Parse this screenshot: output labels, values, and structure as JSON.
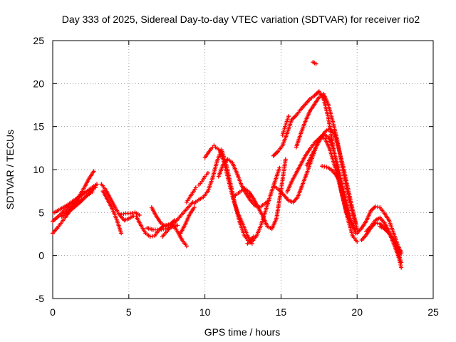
{
  "chart_data": {
    "type": "scatter",
    "title": "Day 333 of 2025, Sidereal Day-to-day VTEC variation (SDTVAR) for receiver rio2",
    "xlabel": "GPS time / hours",
    "ylabel": "SDTVAR / TECUs",
    "xlim": [
      0,
      25
    ],
    "ylim": [
      -5,
      25
    ],
    "xticks": [
      "0",
      "5",
      "10",
      "15",
      "20",
      "25"
    ],
    "yticks": [
      "-5",
      "0",
      "5",
      "10",
      "15",
      "20",
      "25"
    ],
    "grid": true,
    "marker": "+",
    "color": "#ff0000",
    "series": [
      {
        "name": "s1",
        "x": [
          0.0,
          0.3,
          0.6,
          0.9,
          1.2,
          1.5,
          1.8,
          2.1,
          2.4,
          2.7
        ],
        "y": [
          2.6,
          3.2,
          3.9,
          4.6,
          5.4,
          6.2,
          7.1,
          8.0,
          9.0,
          9.8
        ]
      },
      {
        "name": "s2",
        "x": [
          0.0,
          0.4,
          0.8,
          1.2,
          1.6,
          2.0,
          2.4,
          2.8
        ],
        "y": [
          4.0,
          4.6,
          5.3,
          6.0,
          6.6,
          7.2,
          7.6,
          7.9
        ]
      },
      {
        "name": "s3",
        "x": [
          0.1,
          0.5,
          0.9,
          1.3,
          1.7,
          2.1,
          2.5,
          2.8
        ],
        "y": [
          5.0,
          5.4,
          5.8,
          6.3,
          6.8,
          7.3,
          7.8,
          8.2
        ]
      },
      {
        "name": "s4",
        "x": [
          0.6,
          1.0,
          1.4,
          1.8,
          2.2,
          2.6
        ],
        "y": [
          4.5,
          5.2,
          5.8,
          6.4,
          6.9,
          7.4
        ]
      },
      {
        "name": "s5",
        "x": [
          1.0,
          1.4,
          1.8,
          2.2,
          2.6,
          2.9
        ],
        "y": [
          5.0,
          5.6,
          6.2,
          6.9,
          7.6,
          8.3
        ]
      },
      {
        "name": "s6",
        "x": [
          3.2,
          3.5,
          3.8,
          4.1,
          4.4,
          4.7,
          5.0,
          5.3
        ],
        "y": [
          8.3,
          7.6,
          6.6,
          5.6,
          4.7,
          4.1,
          4.3,
          4.6
        ]
      },
      {
        "name": "s7",
        "x": [
          3.3,
          3.6,
          3.9,
          4.2,
          4.5
        ],
        "y": [
          7.5,
          6.5,
          5.5,
          4.2,
          2.6
        ]
      },
      {
        "name": "s8",
        "x": [
          4.5,
          4.8,
          5.1,
          5.4,
          5.7
        ],
        "y": [
          4.8,
          4.9,
          4.9,
          5.0,
          4.7
        ]
      },
      {
        "name": "s9",
        "x": [
          5.5,
          5.8,
          6.1,
          6.4,
          6.7,
          7.0,
          7.3,
          7.6,
          7.9,
          8.2,
          8.5,
          8.8
        ],
        "y": [
          4.5,
          3.5,
          2.6,
          2.2,
          2.3,
          3.0,
          3.5,
          3.6,
          3.5,
          2.8,
          1.8,
          1.1
        ]
      },
      {
        "name": "s10",
        "x": [
          6.2,
          6.6,
          7.0,
          7.4,
          7.8,
          8.2
        ],
        "y": [
          3.2,
          3.0,
          3.0,
          3.1,
          3.3,
          3.5
        ]
      },
      {
        "name": "s11",
        "x": [
          6.5,
          6.8,
          7.1,
          7.4,
          7.7,
          8.0
        ],
        "y": [
          5.6,
          4.6,
          3.8,
          3.4,
          3.6,
          4.1
        ]
      },
      {
        "name": "s12",
        "x": [
          7.2,
          7.6,
          8.0,
          8.4,
          8.8,
          9.2
        ],
        "y": [
          2.2,
          3.0,
          3.8,
          4.6,
          5.4,
          6.2
        ]
      },
      {
        "name": "s13",
        "x": [
          8.4,
          8.7,
          9.0,
          9.3
        ],
        "y": [
          2.6,
          3.6,
          4.8,
          5.6
        ]
      },
      {
        "name": "s14",
        "x": [
          8.8,
          9.0,
          9.2,
          9.4
        ],
        "y": [
          6.2,
          6.8,
          7.3,
          7.9
        ]
      },
      {
        "name": "s15",
        "x": [
          9.3,
          9.6,
          9.9,
          10.2,
          10.5,
          10.8,
          11.1,
          11.4,
          11.7,
          12.0,
          12.3,
          12.6,
          12.9,
          13.2
        ],
        "y": [
          6.1,
          6.5,
          6.8,
          7.5,
          9.0,
          11.0,
          12.3,
          10.6,
          8.2,
          5.8,
          3.8,
          2.3,
          1.6,
          2.2
        ]
      },
      {
        "name": "s16",
        "x": [
          10.7,
          11.0,
          11.3,
          11.6,
          11.9,
          12.2,
          12.5,
          12.8,
          13.1
        ],
        "y": [
          12.6,
          12.2,
          10.6,
          8.4,
          6.3,
          4.8,
          3.6,
          2.3,
          1.4
        ]
      },
      {
        "name": "s17",
        "x": [
          10.9,
          11.2,
          11.5,
          11.8,
          12.1,
          12.4,
          12.7,
          13.0,
          13.3,
          13.6,
          13.9,
          14.2
        ],
        "y": [
          9.2,
          10.6,
          11.2,
          10.8,
          9.6,
          8.2,
          7.2,
          6.4,
          5.8,
          5.6,
          6.0,
          6.4
        ]
      },
      {
        "name": "s18",
        "x": [
          12.0,
          12.3,
          12.6,
          12.9,
          13.2,
          13.5,
          13.8,
          14.1,
          14.4,
          14.7,
          15.0,
          15.3
        ],
        "y": [
          7.0,
          7.4,
          7.8,
          7.4,
          6.6,
          5.6,
          4.6,
          3.4,
          3.1,
          4.3,
          7.6,
          11.2
        ]
      },
      {
        "name": "s19",
        "x": [
          12.8,
          13.1,
          13.4,
          13.7,
          14.0,
          14.3,
          14.6,
          14.9
        ],
        "y": [
          1.4,
          1.6,
          2.3,
          3.6,
          5.3,
          7.0,
          8.6,
          10.2
        ]
      },
      {
        "name": "s20",
        "x": [
          9.6,
          9.8,
          10.0,
          10.2
        ],
        "y": [
          8.2,
          8.6,
          9.2,
          9.6
        ]
      },
      {
        "name": "s21",
        "x": [
          10.0,
          10.2,
          10.4,
          10.6
        ],
        "y": [
          11.4,
          11.9,
          12.4,
          12.8
        ]
      },
      {
        "name": "s22",
        "x": [
          12.7,
          12.9,
          13.1
        ],
        "y": [
          7.6,
          7.2,
          6.8
        ]
      },
      {
        "name": "s23",
        "x": [
          14.5,
          14.8,
          15.1,
          15.4,
          15.7,
          16.0,
          16.3,
          16.6,
          16.9,
          17.2,
          17.5,
          17.8,
          18.1,
          18.4,
          18.7,
          19.0,
          19.3,
          19.6,
          19.9
        ],
        "y": [
          11.6,
          12.1,
          12.8,
          14.2,
          15.8,
          16.3,
          17.0,
          17.6,
          18.2,
          18.6,
          19.1,
          18.2,
          16.1,
          13.0,
          10.0,
          7.2,
          5.0,
          3.8,
          3.0
        ]
      },
      {
        "name": "s24",
        "x": [
          14.6,
          14.9,
          15.2,
          15.5,
          15.8,
          16.1,
          16.4,
          16.7,
          17.0,
          17.3,
          17.6,
          17.9,
          18.2,
          18.5,
          18.8,
          19.1,
          19.4,
          19.7,
          20.0
        ],
        "y": [
          8.0,
          7.6,
          7.0,
          6.4,
          6.2,
          6.8,
          8.2,
          9.6,
          11.1,
          12.6,
          13.8,
          13.6,
          12.4,
          10.6,
          8.6,
          6.4,
          4.2,
          2.3,
          1.6
        ]
      },
      {
        "name": "s25",
        "x": [
          15.4,
          15.7,
          16.0,
          16.3,
          16.6,
          16.9,
          17.2,
          17.5,
          17.8,
          18.1,
          18.4,
          18.7,
          19.0,
          19.3,
          19.6,
          19.9
        ],
        "y": [
          7.4,
          8.6,
          9.6,
          10.6,
          11.6,
          12.4,
          13.1,
          13.6,
          14.1,
          13.8,
          12.6,
          10.6,
          8.4,
          6.2,
          4.1,
          2.6
        ]
      },
      {
        "name": "s26",
        "x": [
          16.0,
          16.3,
          16.6,
          16.9,
          17.2,
          17.5,
          17.8,
          18.1,
          18.4,
          18.7,
          19.0,
          19.3,
          19.6,
          19.9
        ],
        "y": [
          12.6,
          14.2,
          15.6,
          16.8,
          17.6,
          18.4,
          18.8,
          17.6,
          15.6,
          13.4,
          10.6,
          8.0,
          5.6,
          3.8
        ]
      },
      {
        "name": "s27",
        "x": [
          16.7,
          17.0,
          17.3,
          17.6,
          17.9,
          18.2,
          18.5,
          18.8,
          19.1,
          19.4,
          19.7,
          20.0
        ],
        "y": [
          10.5,
          11.6,
          12.6,
          13.6,
          14.4,
          14.8,
          14.2,
          12.4,
          10.2,
          7.8,
          5.4,
          3.0
        ]
      },
      {
        "name": "s28",
        "x": [
          17.7,
          18.0,
          18.3,
          18.6,
          18.9
        ],
        "y": [
          10.4,
          10.3,
          10.0,
          9.4,
          8.6
        ]
      },
      {
        "name": "s29",
        "x": [
          15.1,
          15.3,
          15.5
        ],
        "y": [
          14.0,
          15.2,
          16.2
        ]
      },
      {
        "name": "s30",
        "x": [
          17.1,
          17.3
        ],
        "y": [
          22.5,
          22.3
        ]
      },
      {
        "name": "s31",
        "x": [
          20.0,
          20.3,
          20.6,
          20.9,
          21.2,
          21.5,
          21.8,
          22.1,
          22.4,
          22.7,
          22.9
        ],
        "y": [
          2.6,
          3.2,
          4.0,
          5.2,
          5.7,
          5.6,
          4.9,
          4.1,
          2.6,
          1.1,
          0.4
        ]
      },
      {
        "name": "s32",
        "x": [
          20.3,
          20.6,
          20.9,
          21.2,
          21.5,
          21.8,
          22.1,
          22.4,
          22.7,
          22.9
        ],
        "y": [
          1.8,
          2.4,
          3.2,
          3.8,
          3.7,
          3.2,
          2.6,
          1.6,
          0.3,
          -0.8
        ]
      },
      {
        "name": "s33",
        "x": [
          20.6,
          20.9,
          21.2,
          21.5,
          21.8,
          22.1,
          22.4,
          22.7,
          22.9
        ],
        "y": [
          2.8,
          3.4,
          4.1,
          4.4,
          3.8,
          2.8,
          1.4,
          0.0,
          -1.4
        ]
      },
      {
        "name": "s34",
        "x": [
          21.5,
          21.8,
          22.1,
          22.4,
          22.7,
          22.9
        ],
        "y": [
          3.4,
          3.1,
          2.6,
          1.8,
          0.8,
          0.2
        ]
      }
    ]
  }
}
